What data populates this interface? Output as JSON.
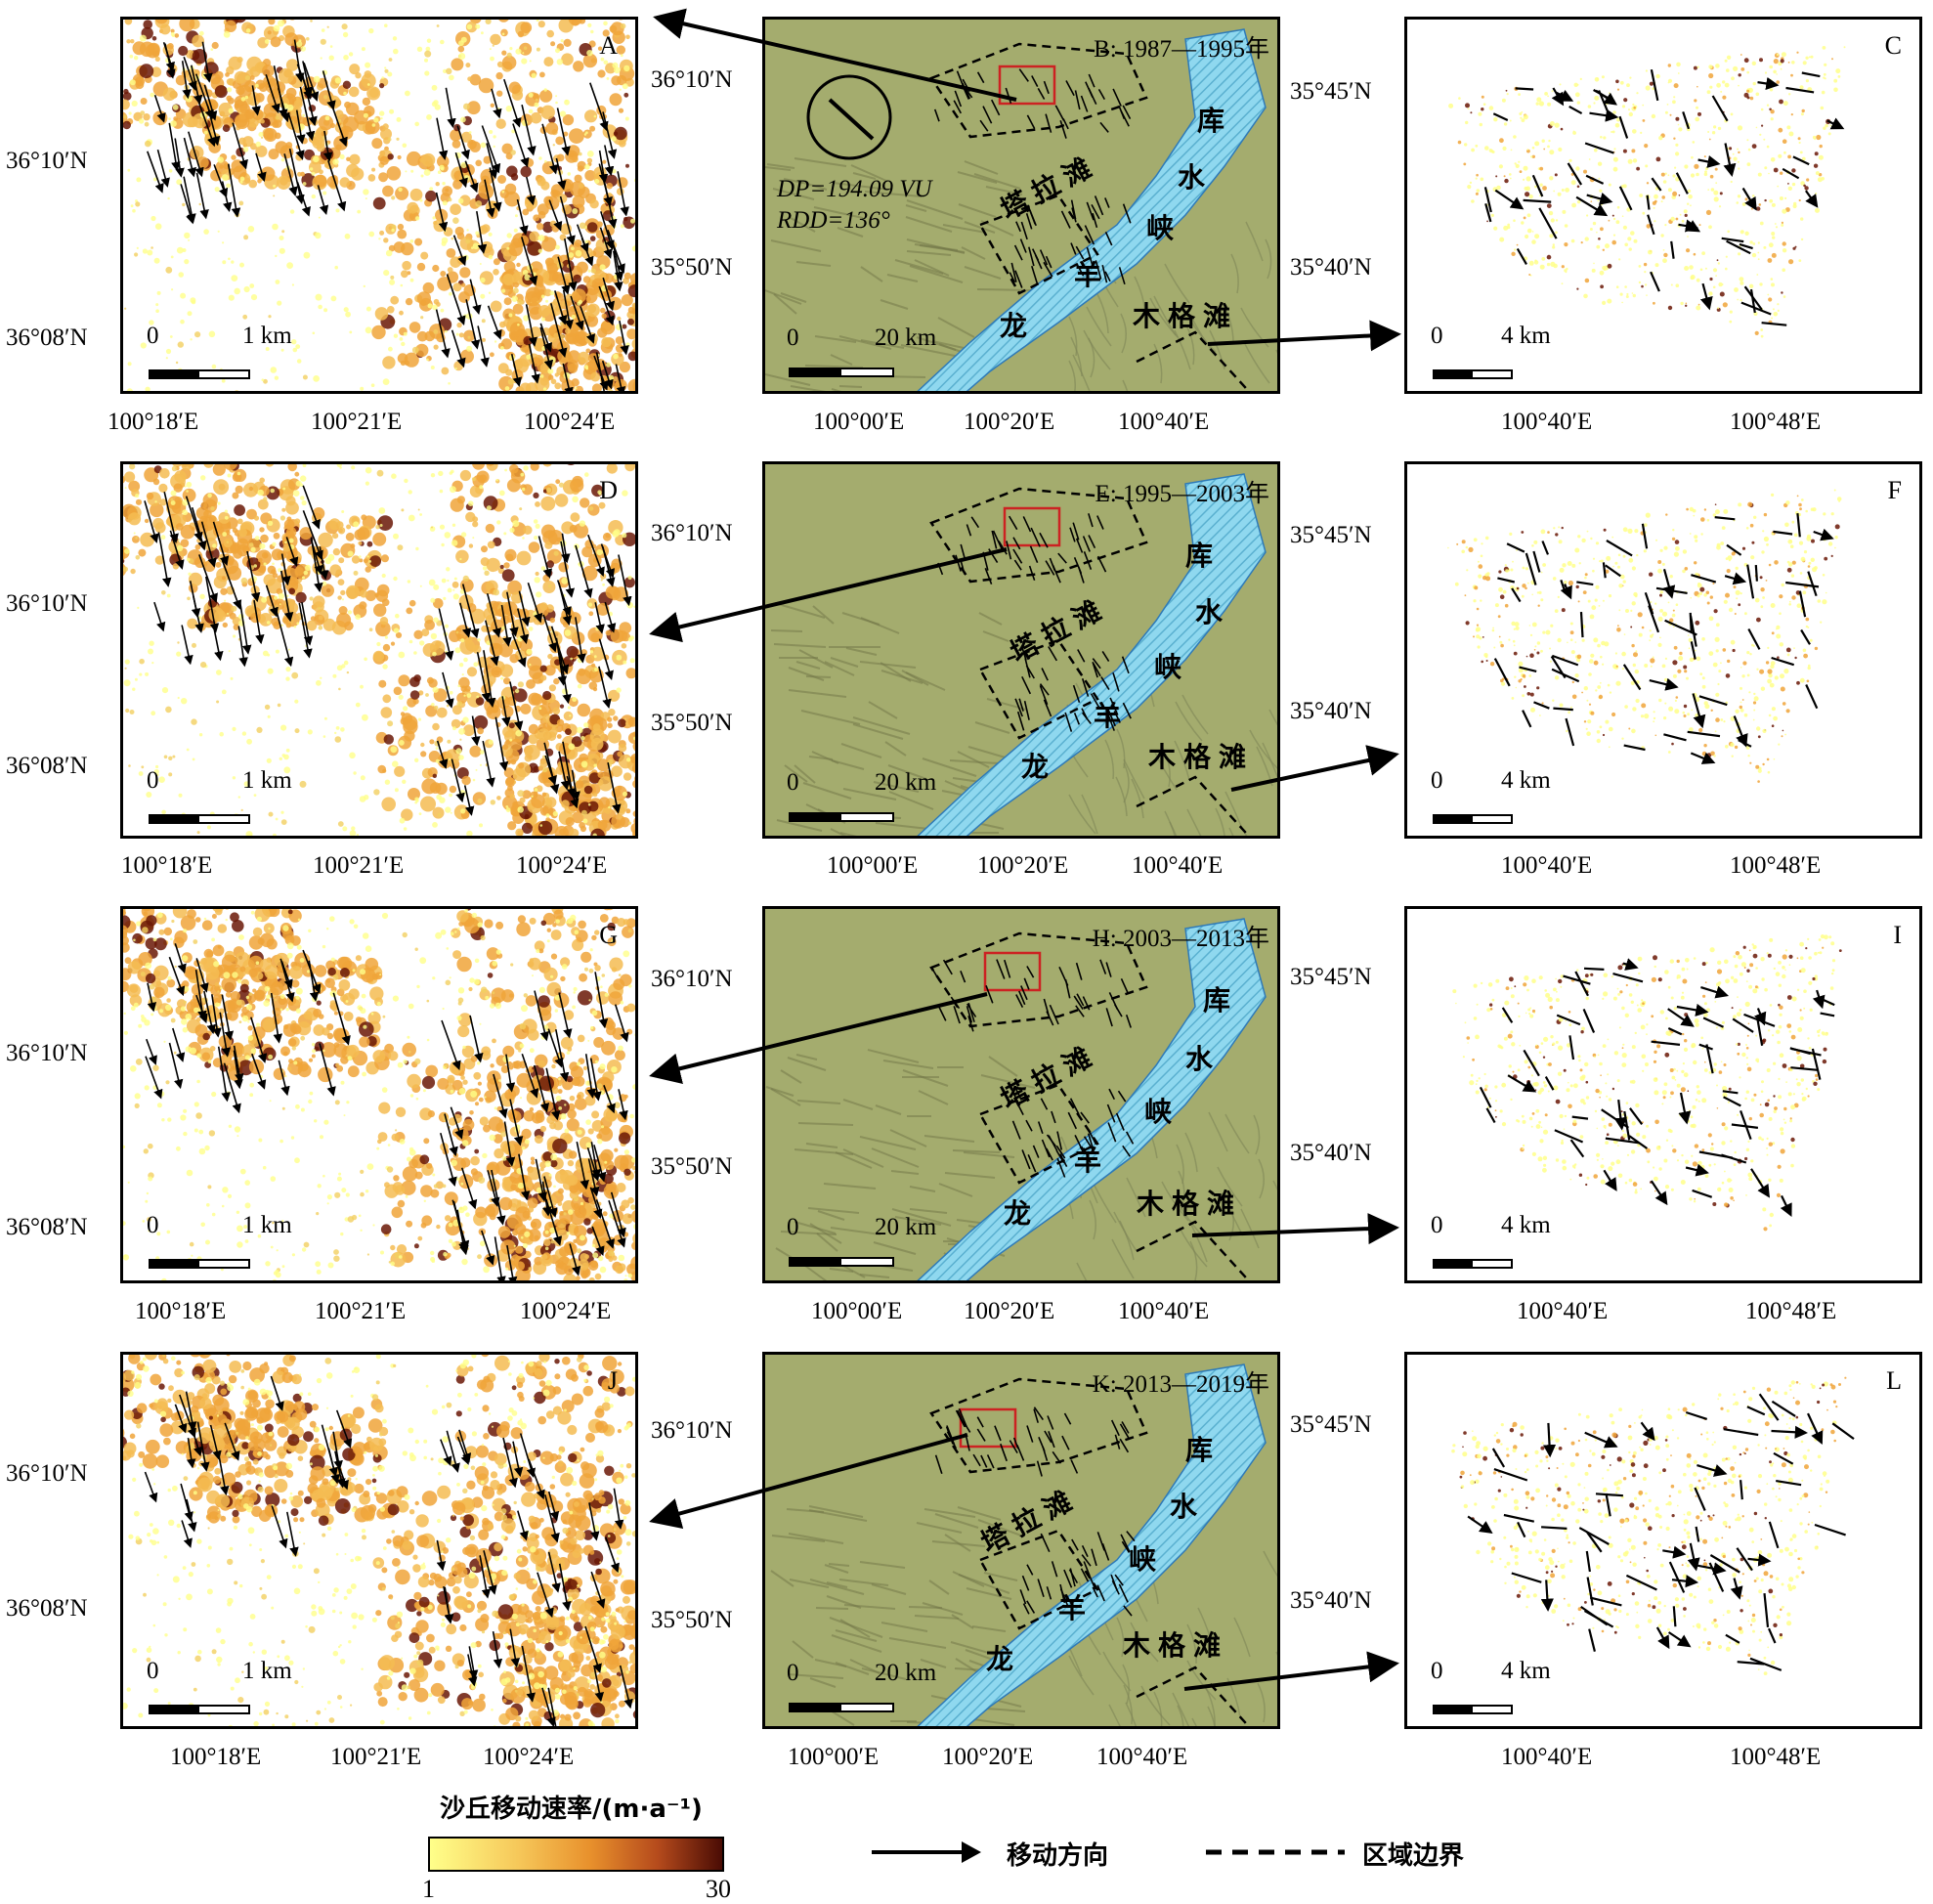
{
  "panels": {
    "A": {
      "label": "A"
    },
    "B": {
      "label": "B: 1987—1995年"
    },
    "C": {
      "label": "C"
    },
    "D": {
      "label": "D"
    },
    "E": {
      "label": "E: 1995—2003年"
    },
    "F": {
      "label": "F"
    },
    "G": {
      "label": "G"
    },
    "H": {
      "label": "H: 2003—2013年"
    },
    "I": {
      "label": "I"
    },
    "J": {
      "label": "J"
    },
    "K": {
      "label": "K: 2013—2019年"
    },
    "L": {
      "label": "L"
    }
  },
  "axes": {
    "left_x": [
      "100°18′E",
      "100°21′E",
      "100°24′E"
    ],
    "left_y": [
      "36°10′N",
      "36°08′N"
    ],
    "mid_x": [
      "100°00′E",
      "100°20′E",
      "100°40′E"
    ],
    "mid_y": [
      "36°10′N",
      "35°50′N"
    ],
    "right_x": [
      "100°40′E",
      "100°48′E"
    ],
    "right_y": [
      "35°45′N",
      "35°40′N"
    ]
  },
  "scales": {
    "left": {
      "zero": "0",
      "end": "1 km"
    },
    "mid": {
      "zero": "0",
      "end": "20 km"
    },
    "right": {
      "zero": "0",
      "end": "4 km"
    }
  },
  "places": {
    "talatan": "塔拉滩",
    "mugetan": "木格滩",
    "ku": "库",
    "shui": "水",
    "xia": "峡",
    "yang": "羊",
    "long": "龙"
  },
  "wind": {
    "dp": "DP=194.09 VU",
    "rdd": "RDD=136°"
  },
  "legend": {
    "colorbar_title": "沙丘移动速率/(m·a⁻¹)",
    "min": "1",
    "max": "30",
    "arrow_label": "移动方向",
    "boundary_label": "区域边界"
  },
  "colors": {
    "dune_light": "#ffff8a",
    "dune_orange": "#f0a43a",
    "dune_dark": "#6a1806",
    "water": "#8fd8ef",
    "terrain": "#a4ac6e",
    "box": "#cc2222"
  }
}
